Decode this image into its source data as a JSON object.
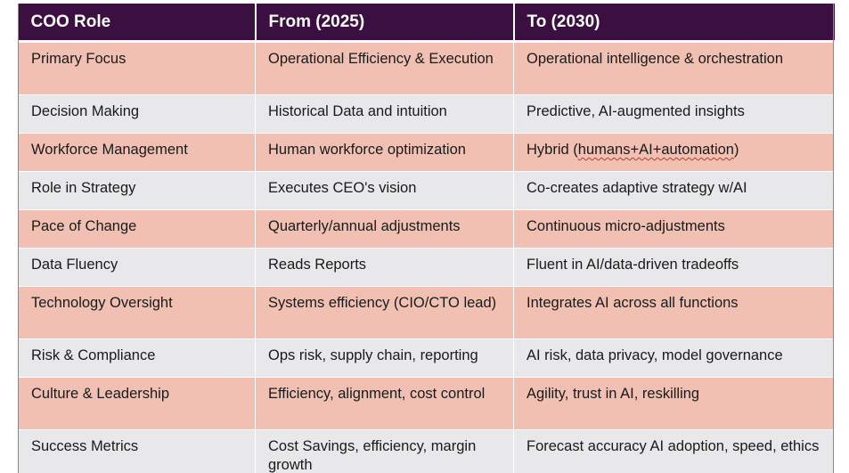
{
  "table": {
    "headers": [
      "COO Role",
      "From (2025)",
      "To (2030)"
    ],
    "rows": [
      {
        "role": "Primary Focus",
        "from": "Operational Efficiency & Execution",
        "to": "Operational intelligence & orchestration"
      },
      {
        "role": "Decision Making",
        "from": "Historical Data and intuition",
        "to": "Predictive, AI-augmented insights"
      },
      {
        "role": "Workforce Management",
        "from": "Human workforce optimization",
        "to_prefix": "Hybrid (",
        "to_flagged": "humans+AI+automation",
        "to_suffix": ")"
      },
      {
        "role": "Role in Strategy",
        "from": "Executes CEO's vision",
        "to": "Co-creates adaptive strategy w/AI"
      },
      {
        "role": "Pace of Change",
        "from": "Quarterly/annual adjustments",
        "to": "Continuous micro-adjustments"
      },
      {
        "role": "Data Fluency",
        "from": "Reads Reports",
        "to": "Fluent in AI/data-driven tradeoffs"
      },
      {
        "role": "Technology Oversight",
        "from": "Systems efficiency (CIO/CTO lead)",
        "to": "Integrates AI across all functions"
      },
      {
        "role": "Risk & Compliance",
        "from": "Ops risk, supply chain, reporting",
        "to": "AI risk, data privacy, model governance"
      },
      {
        "role": "Culture & Leadership",
        "from": "Efficiency, alignment, cost control",
        "to": "Agility, trust in AI, reskilling"
      },
      {
        "role": "Success Metrics",
        "from": "Cost Savings, efficiency, margin growth",
        "to": "Forecast accuracy AI adoption, speed, ethics"
      }
    ]
  },
  "colors": {
    "header_bg": "#3b0f3f",
    "row_odd_bg": "#f1c0b2",
    "row_even_bg": "#e8e7e9"
  }
}
